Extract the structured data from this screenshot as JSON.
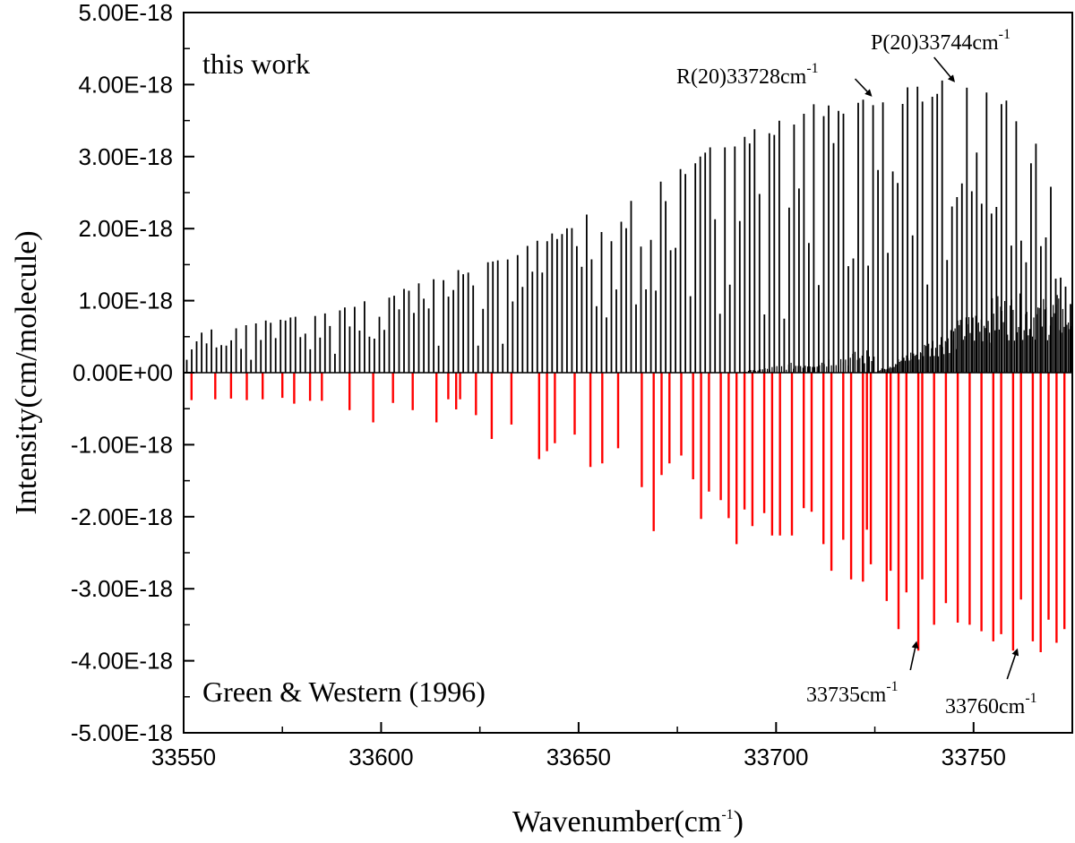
{
  "chart_data": {
    "type": "stick-spectrum",
    "xlabel": "Wavenumber(cm",
    "xlabel_sup": "-1",
    "xlabel_tail": ")",
    "ylabel": "Intensity(cm/molecule)",
    "xlim": [
      33550,
      33775
    ],
    "ylim": [
      -5e-18,
      5e-18
    ],
    "x_ticks": [
      33550,
      33600,
      33650,
      33700,
      33750
    ],
    "x_tick_labels": [
      "33550",
      "33600",
      "33650",
      "33700",
      "33750"
    ],
    "y_ticks": [
      5e-18,
      4e-18,
      3e-18,
      2e-18,
      1e-18,
      0,
      -1e-18,
      -2e-18,
      -3e-18,
      -4e-18,
      -5e-18
    ],
    "y_tick_labels": [
      "5.00E-18",
      "4.00E-18",
      "3.00E-18",
      "2.00E-18",
      "1.00E-18",
      "0.00E+00",
      "-1.00E-18",
      "-2.00E-18",
      "-3.00E-18",
      "-4.00E-18",
      "-5.00E-18"
    ],
    "colors": {
      "this_work": "#000000",
      "reference": "#ff0000",
      "axis": "#000000"
    },
    "series": [
      {
        "name": "this work",
        "color": "#000000",
        "note": "dense P/Q/R branch sticks; representative peak envelope points (wavenumber, intensity)",
        "envelope_x": [
          33551,
          33555,
          33560,
          33565,
          33570,
          33575,
          33580,
          33585,
          33590,
          33595,
          33600,
          33605,
          33610,
          33615,
          33620,
          33625,
          33630,
          33635,
          33640,
          33645,
          33650,
          33655,
          33660,
          33665,
          33670,
          33675,
          33680,
          33685,
          33690,
          33695,
          33700,
          33705,
          33710,
          33715,
          33720,
          33725,
          33730,
          33735,
          33740,
          33745,
          33750,
          33755,
          33760,
          33765,
          33770,
          33774
        ],
        "envelope_y": [
          2.5e-19,
          6e-19,
          6.2e-19,
          6.8e-19,
          7.2e-19,
          7.5e-19,
          8e-19,
          8.5e-19,
          9e-19,
          1e-18,
          1.05e-18,
          1.15e-18,
          1.25e-18,
          1.35e-18,
          1.45e-18,
          1.55e-18,
          1.65e-18,
          1.75e-18,
          1.85e-18,
          2e-18,
          2.15e-18,
          2.3e-18,
          2.45e-18,
          2.6e-18,
          2.75e-18,
          2.9e-18,
          3.05e-18,
          3.2e-18,
          3.35e-18,
          3.45e-18,
          3.55e-18,
          3.65e-18,
          3.75e-18,
          3.8e-18,
          3.85e-18,
          3.9e-18,
          3.95e-18,
          4e-18,
          4.05e-18,
          4.08e-18,
          4.1e-18,
          4e-18,
          3.8e-18,
          3.5e-18,
          2.5e-18,
          1e-18
        ],
        "q_branch_start": 33725,
        "q_branch_peak": 1.1e-18
      },
      {
        "name": "Green & Western (1996)",
        "color": "#ff0000",
        "x": [
          33552,
          33558,
          33562,
          33566,
          33570,
          33575,
          33578,
          33582,
          33585,
          33592,
          33598,
          33603,
          33608,
          33614,
          33617,
          33619,
          33620,
          33624,
          33628,
          33633,
          33640,
          33642,
          33644,
          33649,
          33653,
          33656,
          33660,
          33666,
          33669,
          33671,
          33673,
          33676,
          33679,
          33681,
          33683,
          33686,
          33688,
          33690,
          33692,
          33694,
          33697,
          33699,
          33701,
          33704,
          33707,
          33709,
          33712,
          33714,
          33717,
          33719,
          33722,
          33723,
          33724,
          33728,
          33729,
          33731,
          33733,
          33736,
          33737,
          33740,
          33743,
          33746,
          33749,
          33752,
          33755,
          33757,
          33760,
          33762,
          33765,
          33767,
          33769,
          33771,
          33773
        ],
        "values": [
          -3.8e-19,
          -3.7e-19,
          -3.6e-19,
          -3.8e-19,
          -3.7e-19,
          -3.5e-19,
          -4.3e-19,
          -3.9e-19,
          -3.9e-19,
          -5.2e-19,
          -6.9e-19,
          -4.2e-19,
          -5.2e-19,
          -6.9e-19,
          -3.7e-19,
          -5.1e-19,
          -3.7e-19,
          -5.9e-19,
          -9.2e-19,
          -7.2e-19,
          -1.2e-18,
          -1.09e-18,
          -9.8e-19,
          -8.6e-19,
          -1.31e-18,
          -1.26e-18,
          -1.05e-18,
          -1.59e-18,
          -2.2e-18,
          -1.42e-18,
          -1.26e-18,
          -1.15e-18,
          -1.48e-18,
          -2.03e-18,
          -1.65e-18,
          -1.77e-18,
          -2.02e-18,
          -2.38e-18,
          -1.9e-18,
          -2.13e-18,
          -1.95e-18,
          -2.26e-18,
          -2.26e-18,
          -2.26e-18,
          -1.88e-18,
          -1.93e-18,
          -2.38e-18,
          -2.75e-18,
          -2.32e-18,
          -2.87e-18,
          -2.9e-18,
          -2.18e-18,
          -2.66e-18,
          -3.17e-18,
          -2.75e-18,
          -3.56e-18,
          -3.05e-18,
          -3.86e-18,
          -2.87e-18,
          -3.5e-18,
          -3.2e-18,
          -3.47e-18,
          -3.5e-18,
          -3.59e-18,
          -3.73e-18,
          -3.63e-18,
          -3.86e-18,
          -3.15e-18,
          -3.73e-18,
          -3.88e-18,
          -3.43e-18,
          -3.75e-18,
          -3.56e-18
        ]
      }
    ],
    "annotations": {
      "top_label": "this work",
      "bottom_label": "Green & Western (1996)",
      "r20_text": "R(20)33728cm",
      "r20_sup": "-1",
      "r20_target": [
        33724,
        3.85e-18
      ],
      "p20_text": "P(20)33744cm",
      "p20_sup": "-1",
      "p20_target": [
        33745,
        4.05e-18
      ],
      "m35_text": "33735cm",
      "m35_sup": "-1",
      "m35_target": [
        33735.5,
        -3.75e-18
      ],
      "m60_text": "33760cm",
      "m60_sup": "-1",
      "m60_target": [
        33761,
        -3.85e-18
      ]
    }
  }
}
